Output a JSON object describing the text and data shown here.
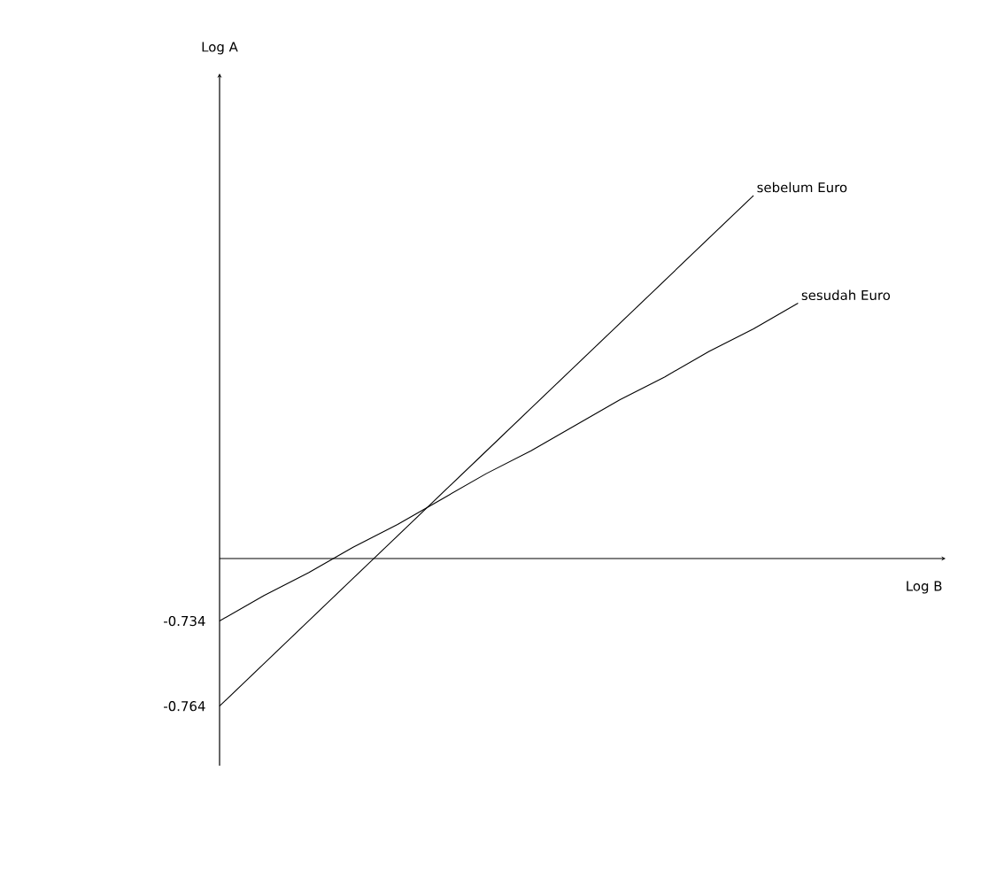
{
  "chart_data": {
    "type": "line",
    "ylabel": "Log A",
    "categories": [
      null,
      null,
      null,
      null,
      null,
      null,
      null,
      null,
      null,
      null,
      null,
      null,
      null,
      null
    ],
    "series": [
      {
        "name": "sebelum Euro",
        "color": "#000000",
        "values": [
          -0.764,
          -0.749,
          -0.734,
          -0.719,
          -0.704,
          -0.689,
          -0.674,
          -0.659,
          -0.644,
          -0.629,
          -0.614,
          -0.599,
          -0.584,
          null
        ]
      },
      {
        "name": "sesudah Euro",
        "color": "#000000",
        "values": [
          -0.734,
          -0.725,
          -0.717,
          -0.708,
          -0.7,
          -0.691,
          -0.682,
          -0.674,
          -0.665,
          -0.656,
          -0.648,
          -0.639,
          -0.631,
          -0.622
        ]
      }
    ],
    "ylim": [
      -0.785,
      -0.541
    ],
    "yticks": [
      -0.764,
      -0.734
    ],
    "ref_lines": [
      {
        "axis": "y",
        "value": -0.712,
        "label": "Log B"
      }
    ],
    "tick_labels": "y",
    "grid": false,
    "legend": false,
    "marker": "none",
    "line_style": "solid"
  }
}
